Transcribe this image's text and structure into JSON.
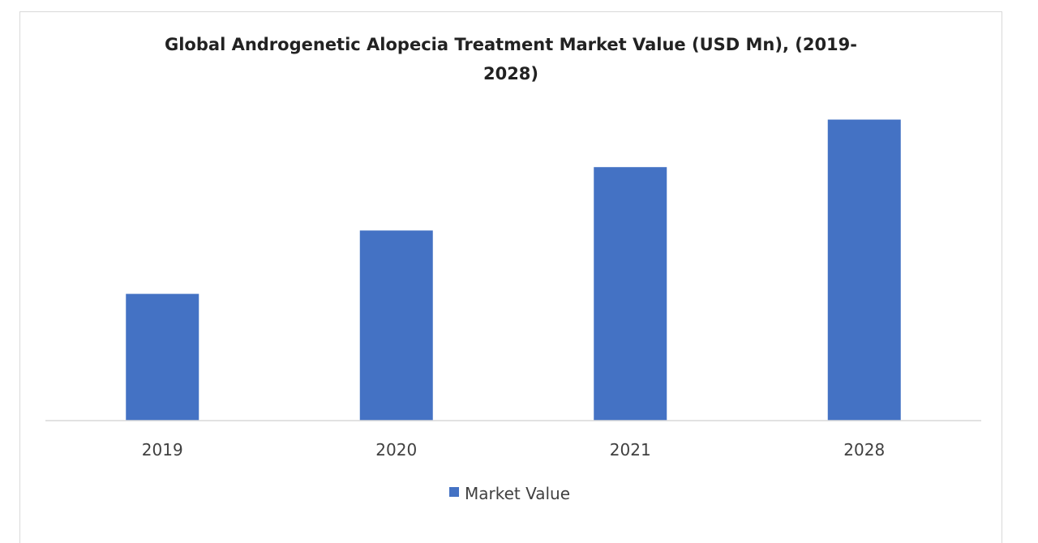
{
  "chart_data": {
    "type": "bar",
    "title_lines": [
      "Global Androgenetic Alopecia  Treatment Market Value (USD Mn), (2019-",
      "2028)"
    ],
    "categories": [
      "2019",
      "2020",
      "2021",
      "2028"
    ],
    "series": [
      {
        "name": "Market Value",
        "values": [
          152,
          228,
          304,
          361
        ],
        "color": "#4472c4"
      }
    ],
    "ylim": [
      0,
      380
    ],
    "grid": false,
    "legend_position": "bottom"
  }
}
